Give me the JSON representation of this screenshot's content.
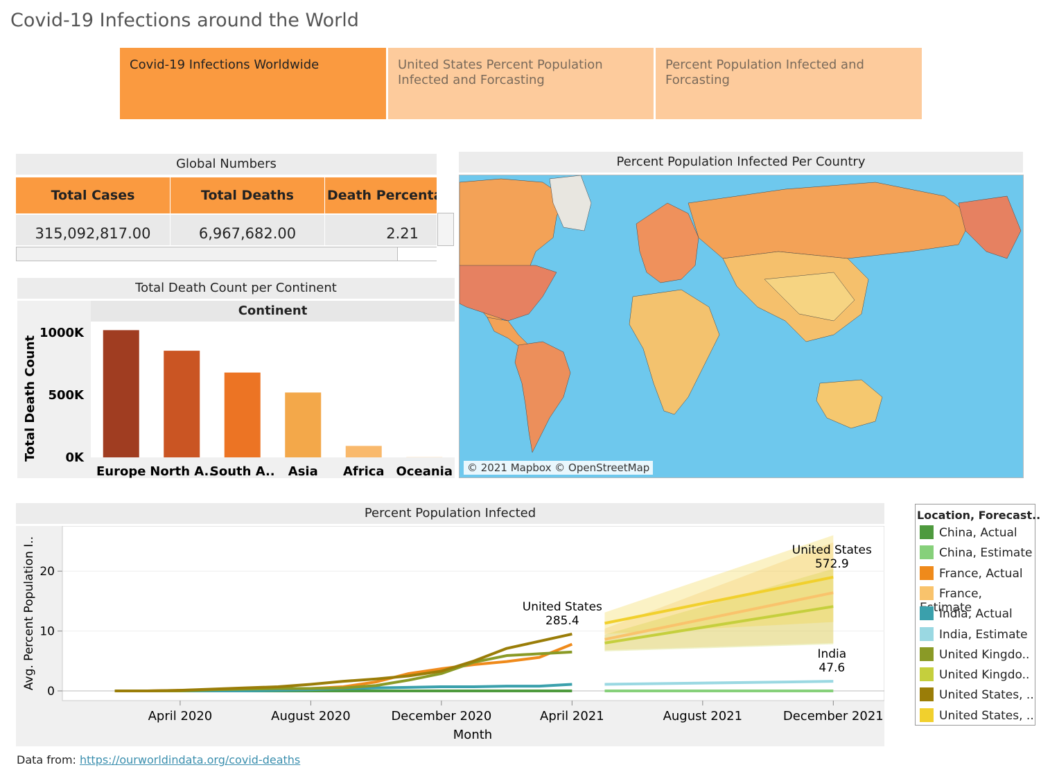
{
  "page_title": "Covid-19 Infections around the World",
  "tabs": [
    {
      "label": "Covid-19 Infections Worldwide",
      "active": true
    },
    {
      "label": "United States Percent Population Infected and Forcasting",
      "active": false
    },
    {
      "label": "Percent Population Infected and Forcasting",
      "active": false
    }
  ],
  "global_numbers": {
    "title": "Global Numbers",
    "headers": [
      "Total Cases",
      "Total Deaths",
      "Death Percentag"
    ],
    "values": [
      "315,092,817.00",
      "6,967,682.00",
      "2.21"
    ]
  },
  "map": {
    "title": "Percent Population Infected Per Country",
    "attribution": "© 2021 Mapbox © OpenStreetMap",
    "ocean_color": "#6ec8ed"
  },
  "footer": {
    "prefix": "Data from: ",
    "link_text": "https://ourworldindata.org/covid-deaths"
  },
  "chart_data": [
    {
      "type": "bar",
      "title": "Total Death Count per Continent",
      "header": "Continent",
      "ylabel": "Total Death Count",
      "categories": [
        "Europe",
        "North A..",
        "South A..",
        "Asia",
        "Africa",
        "Oceania"
      ],
      "values": [
        1020000,
        855000,
        680000,
        520000,
        92000,
        2000
      ],
      "colors": [
        "#a03d21",
        "#ca5523",
        "#ec7424",
        "#f3a84a",
        "#f9b96c",
        "#fdd3a0"
      ],
      "ylim": [
        0,
        1000000
      ],
      "yticks": [
        0,
        500000,
        1000000
      ],
      "ytick_labels": [
        "0K",
        "500K",
        "1000K"
      ]
    },
    {
      "type": "line",
      "title": "Percent Population Infected",
      "xlabel": "Month",
      "ylabel": "Avg. Percent Population I..",
      "ylim": [
        0,
        25
      ],
      "yticks": [
        0,
        10,
        20
      ],
      "xtick_labels": [
        "April 2020",
        "August 2020",
        "December 2020",
        "April 2021",
        "August 2021",
        "December 2021"
      ],
      "xticks_month_index": [
        3,
        7,
        11,
        15,
        19,
        23
      ],
      "x_month_index_range": [
        -0.5,
        24.5
      ],
      "legend_title": "Location, Forecast..",
      "annotations": [
        {
          "name": "United States",
          "value": "285.4",
          "month": 15,
          "y": 9.5
        },
        {
          "name": "United States",
          "value": "572.9",
          "month": 23,
          "y": 19.0
        },
        {
          "name": "India",
          "value": "47.6",
          "month": 23,
          "y": 1.6
        }
      ],
      "series": [
        {
          "name": "China, Actual",
          "color": "#4e9a3e",
          "month": [
            1,
            2,
            3,
            4,
            5,
            6,
            7,
            8,
            9,
            10,
            11,
            12,
            13,
            14,
            15
          ],
          "values": [
            0,
            0,
            0,
            0,
            0,
            0,
            0,
            0,
            0,
            0,
            0,
            0,
            0,
            0,
            0
          ]
        },
        {
          "name": "China, Estimate",
          "color": "#86d07a",
          "month": [
            16,
            23
          ],
          "values": [
            0,
            0
          ]
        },
        {
          "name": "France, Actual",
          "color": "#ef8a1b",
          "month": [
            1,
            2,
            3,
            4,
            5,
            6,
            7,
            8,
            9,
            10,
            11,
            12,
            13,
            14,
            15
          ],
          "values": [
            0,
            0,
            0.1,
            0.2,
            0.3,
            0.3,
            0.4,
            0.7,
            1.5,
            2.9,
            3.7,
            4.4,
            4.9,
            5.6,
            7.8
          ]
        },
        {
          "name": "France, Estimate",
          "color": "#f9c36c",
          "month": [
            16,
            23
          ],
          "values": [
            8.6,
            16.4
          ],
          "band_low": [
            6.8,
            8.0
          ],
          "band_high": [
            10.4,
            24.8
          ]
        },
        {
          "name": "India, Actual",
          "color": "#3aa0ac",
          "month": [
            1,
            2,
            3,
            4,
            5,
            6,
            7,
            8,
            9,
            10,
            11,
            12,
            13,
            14,
            15
          ],
          "values": [
            0,
            0,
            0,
            0,
            0,
            0.1,
            0.2,
            0.4,
            0.5,
            0.6,
            0.7,
            0.7,
            0.8,
            0.8,
            1.1
          ]
        },
        {
          "name": "India, Estimate",
          "color": "#9ad8e2",
          "month": [
            16,
            23
          ],
          "values": [
            1.1,
            1.6
          ]
        },
        {
          "name": "United Kingdo..",
          "color": "#8a9a26",
          "month": [
            1,
            2,
            3,
            4,
            5,
            6,
            7,
            8,
            9,
            10,
            11,
            12,
            13,
            14,
            15
          ],
          "values": [
            0,
            0,
            0,
            0.2,
            0.3,
            0.4,
            0.4,
            0.5,
            0.9,
            1.8,
            2.9,
            4.8,
            5.9,
            6.2,
            6.5
          ]
        },
        {
          "name": "United Kingdo..",
          "color": "#c5cf3d",
          "month": [
            16,
            23
          ],
          "values": [
            8.0,
            14.1
          ],
          "band_low": [
            6.6,
            7.8
          ],
          "band_high": [
            9.4,
            20.4
          ]
        },
        {
          "name": "United States, ..",
          "color": "#9a7d08",
          "month": [
            1,
            2,
            3,
            4,
            5,
            6,
            7,
            8,
            9,
            10,
            11,
            12,
            13,
            14,
            15
          ],
          "values": [
            0,
            0,
            0.1,
            0.3,
            0.5,
            0.7,
            1.1,
            1.6,
            2.0,
            2.5,
            3.3,
            5.0,
            7.1,
            8.3,
            9.5
          ]
        },
        {
          "name": "United States, ..",
          "color": "#f1d02d",
          "month": [
            16,
            23
          ],
          "values": [
            11.3,
            19.0
          ],
          "band_low": [
            9.5,
            11.5
          ],
          "band_high": [
            13.1,
            26.0
          ]
        }
      ]
    }
  ]
}
